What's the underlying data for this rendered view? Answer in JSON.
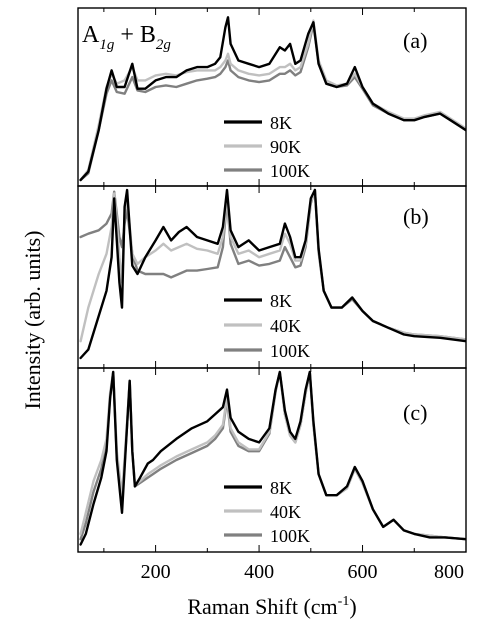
{
  "y_axis_label": "Intensity (arb. units)",
  "x_axis_label_main": "Raman Shift (cm",
  "x_axis_label_sup": "-1",
  "x_axis_label_end": ")",
  "symmetry_label": {
    "a": "A",
    "a_sub": "1g",
    "plus": " + ",
    "b": "B",
    "b_sub": "2g"
  },
  "chart_data": [
    {
      "type": "line",
      "panel_label": "(a)",
      "xlim": [
        50,
        800
      ],
      "x_ticks": [
        200,
        400,
        600,
        800
      ],
      "legend_position": "center",
      "series": [
        {
          "name": "8K",
          "color": "#000000",
          "width": 2.4,
          "x": [
            55,
            70,
            90,
            105,
            115,
            125,
            140,
            155,
            165,
            180,
            200,
            220,
            240,
            260,
            280,
            300,
            315,
            325,
            335,
            340,
            345,
            360,
            380,
            400,
            420,
            440,
            450,
            460,
            470,
            480,
            495,
            505,
            515,
            530,
            550,
            570,
            585,
            600,
            620,
            650,
            680,
            700,
            720,
            750,
            770,
            800
          ],
          "y": [
            0.0,
            0.05,
            0.3,
            0.55,
            0.66,
            0.56,
            0.56,
            0.7,
            0.55,
            0.55,
            0.6,
            0.62,
            0.62,
            0.66,
            0.68,
            0.68,
            0.7,
            0.74,
            0.92,
            0.98,
            0.82,
            0.72,
            0.7,
            0.68,
            0.7,
            0.8,
            0.78,
            0.82,
            0.7,
            0.72,
            0.88,
            0.95,
            0.7,
            0.58,
            0.56,
            0.58,
            0.68,
            0.56,
            0.46,
            0.4,
            0.36,
            0.36,
            0.38,
            0.4,
            0.36,
            0.3
          ]
        },
        {
          "name": "90K",
          "color": "#c0c0c0",
          "width": 2.4,
          "x": [
            55,
            70,
            90,
            105,
            115,
            125,
            140,
            155,
            165,
            180,
            200,
            220,
            240,
            260,
            280,
            300,
            315,
            325,
            335,
            340,
            345,
            360,
            380,
            400,
            420,
            440,
            450,
            460,
            470,
            480,
            495,
            505,
            515,
            530,
            550,
            570,
            585,
            600,
            620,
            650,
            680,
            700,
            720,
            750,
            770,
            800
          ],
          "y": [
            0.0,
            0.06,
            0.33,
            0.56,
            0.64,
            0.58,
            0.6,
            0.68,
            0.6,
            0.6,
            0.63,
            0.64,
            0.63,
            0.65,
            0.66,
            0.66,
            0.66,
            0.68,
            0.72,
            0.76,
            0.7,
            0.66,
            0.64,
            0.63,
            0.64,
            0.68,
            0.68,
            0.7,
            0.66,
            0.68,
            0.82,
            0.96,
            0.72,
            0.6,
            0.57,
            0.58,
            0.64,
            0.56,
            0.46,
            0.41,
            0.37,
            0.37,
            0.39,
            0.41,
            0.37,
            0.31
          ]
        },
        {
          "name": "100K",
          "color": "#808080",
          "width": 2.4,
          "x": [
            55,
            70,
            90,
            105,
            115,
            125,
            140,
            155,
            165,
            180,
            200,
            220,
            240,
            260,
            280,
            300,
            315,
            325,
            335,
            340,
            345,
            360,
            380,
            400,
            420,
            440,
            450,
            460,
            470,
            480,
            495,
            505,
            515,
            530,
            550,
            570,
            585,
            600,
            620,
            650,
            680,
            700,
            720,
            750,
            770,
            800
          ],
          "y": [
            0.0,
            0.04,
            0.3,
            0.52,
            0.6,
            0.53,
            0.52,
            0.62,
            0.54,
            0.53,
            0.56,
            0.57,
            0.56,
            0.58,
            0.6,
            0.61,
            0.62,
            0.64,
            0.68,
            0.72,
            0.66,
            0.62,
            0.6,
            0.59,
            0.6,
            0.64,
            0.64,
            0.66,
            0.63,
            0.65,
            0.8,
            0.94,
            0.7,
            0.58,
            0.56,
            0.57,
            0.62,
            0.55,
            0.45,
            0.4,
            0.36,
            0.36,
            0.38,
            0.4,
            0.36,
            0.3
          ]
        }
      ]
    },
    {
      "type": "line",
      "panel_label": "(b)",
      "xlim": [
        50,
        800
      ],
      "x_ticks": [
        200,
        400,
        600,
        800
      ],
      "legend_position": "bottom-center",
      "series": [
        {
          "name": "8K",
          "color": "#000000",
          "width": 2.4,
          "x": [
            55,
            70,
            90,
            105,
            115,
            120,
            125,
            130,
            135,
            140,
            145,
            155,
            165,
            180,
            200,
            215,
            230,
            245,
            260,
            280,
            300,
            320,
            330,
            338,
            345,
            360,
            380,
            400,
            420,
            440,
            450,
            460,
            470,
            480,
            490,
            500,
            508,
            515,
            525,
            540,
            560,
            580,
            600,
            620,
            650,
            680,
            700,
            750,
            800
          ],
          "y": [
            0.0,
            0.05,
            0.25,
            0.4,
            0.6,
            0.95,
            0.7,
            0.45,
            0.3,
            0.9,
            1.0,
            0.55,
            0.5,
            0.6,
            0.7,
            0.78,
            0.7,
            0.75,
            0.78,
            0.72,
            0.7,
            0.68,
            0.78,
            1.0,
            0.76,
            0.66,
            0.7,
            0.64,
            0.66,
            0.68,
            0.8,
            0.72,
            0.6,
            0.6,
            0.7,
            0.95,
            1.0,
            0.65,
            0.4,
            0.3,
            0.3,
            0.36,
            0.28,
            0.22,
            0.18,
            0.14,
            0.13,
            0.12,
            0.1
          ]
        },
        {
          "name": "40K",
          "color": "#c0c0c0",
          "width": 2.4,
          "x": [
            55,
            70,
            90,
            105,
            115,
            120,
            125,
            130,
            135,
            140,
            145,
            155,
            165,
            180,
            200,
            215,
            230,
            245,
            260,
            280,
            300,
            320,
            330,
            338,
            345,
            360,
            380,
            400,
            420,
            440,
            450,
            460,
            470,
            480,
            490,
            500,
            508,
            515,
            525,
            540,
            560,
            580,
            600,
            620,
            650,
            680,
            700,
            750,
            800
          ],
          "y": [
            0.1,
            0.3,
            0.5,
            0.62,
            0.78,
            0.98,
            0.82,
            0.6,
            0.45,
            0.85,
            0.95,
            0.62,
            0.56,
            0.6,
            0.64,
            0.68,
            0.64,
            0.66,
            0.68,
            0.65,
            0.64,
            0.62,
            0.72,
            0.96,
            0.72,
            0.62,
            0.64,
            0.6,
            0.62,
            0.64,
            0.74,
            0.68,
            0.58,
            0.58,
            0.68,
            0.93,
            1.0,
            0.64,
            0.4,
            0.3,
            0.3,
            0.36,
            0.28,
            0.22,
            0.18,
            0.15,
            0.14,
            0.13,
            0.11
          ]
        },
        {
          "name": "100K",
          "color": "#808080",
          "width": 2.4,
          "x": [
            55,
            70,
            90,
            105,
            115,
            120,
            125,
            130,
            135,
            140,
            145,
            155,
            165,
            180,
            200,
            215,
            230,
            245,
            260,
            280,
            300,
            320,
            330,
            338,
            345,
            360,
            380,
            400,
            420,
            440,
            450,
            460,
            470,
            480,
            490,
            500,
            508,
            515,
            525,
            540,
            560,
            580,
            600,
            620,
            650,
            680,
            700,
            750,
            800
          ],
          "y": [
            0.72,
            0.74,
            0.76,
            0.8,
            0.86,
            0.99,
            0.86,
            0.72,
            0.66,
            0.8,
            0.88,
            0.62,
            0.52,
            0.5,
            0.5,
            0.5,
            0.48,
            0.5,
            0.52,
            0.52,
            0.53,
            0.54,
            0.66,
            0.94,
            0.68,
            0.56,
            0.58,
            0.55,
            0.56,
            0.58,
            0.66,
            0.6,
            0.54,
            0.55,
            0.66,
            0.92,
            1.0,
            0.63,
            0.4,
            0.3,
            0.3,
            0.35,
            0.28,
            0.22,
            0.18,
            0.15,
            0.14,
            0.13,
            0.11
          ]
        }
      ]
    },
    {
      "type": "line",
      "panel_label": "(c)",
      "xlim": [
        50,
        800
      ],
      "x_ticks": [
        200,
        400,
        600,
        800
      ],
      "legend_position": "bottom-center",
      "series": [
        {
          "name": "8K",
          "color": "#000000",
          "width": 2.4,
          "x": [
            55,
            65,
            80,
            95,
            105,
            112,
            118,
            125,
            135,
            145,
            150,
            155,
            160,
            170,
            185,
            195,
            210,
            240,
            270,
            300,
            315,
            330,
            338,
            345,
            360,
            380,
            400,
            420,
            432,
            440,
            450,
            460,
            470,
            480,
            490,
            498,
            505,
            515,
            530,
            550,
            570,
            585,
            600,
            620,
            640,
            660,
            680,
            700,
            730,
            760,
            800
          ],
          "y": [
            0.02,
            0.08,
            0.25,
            0.4,
            0.55,
            0.85,
            1.0,
            0.5,
            0.2,
            0.7,
            0.95,
            0.55,
            0.35,
            0.4,
            0.48,
            0.5,
            0.55,
            0.62,
            0.68,
            0.72,
            0.76,
            0.8,
            0.9,
            0.74,
            0.66,
            0.62,
            0.6,
            0.68,
            0.9,
            1.0,
            0.78,
            0.66,
            0.62,
            0.72,
            0.9,
            1.0,
            0.72,
            0.42,
            0.3,
            0.3,
            0.35,
            0.46,
            0.38,
            0.22,
            0.12,
            0.16,
            0.1,
            0.08,
            0.06,
            0.06,
            0.05
          ]
        },
        {
          "name": "40K",
          "color": "#c0c0c0",
          "width": 2.4,
          "x": [
            55,
            65,
            80,
            95,
            105,
            112,
            118,
            125,
            135,
            145,
            150,
            155,
            160,
            170,
            185,
            195,
            210,
            240,
            270,
            300,
            315,
            330,
            338,
            345,
            360,
            380,
            400,
            420,
            432,
            440,
            450,
            460,
            470,
            480,
            490,
            498,
            505,
            515,
            530,
            550,
            570,
            585,
            600,
            620,
            640,
            660,
            680,
            700,
            730,
            760,
            800
          ],
          "y": [
            0.08,
            0.2,
            0.38,
            0.5,
            0.62,
            0.88,
            1.0,
            0.55,
            0.3,
            0.72,
            0.95,
            0.55,
            0.36,
            0.38,
            0.42,
            0.44,
            0.47,
            0.52,
            0.56,
            0.6,
            0.64,
            0.7,
            0.86,
            0.68,
            0.6,
            0.56,
            0.56,
            0.66,
            0.9,
            1.0,
            0.76,
            0.64,
            0.6,
            0.7,
            0.88,
            1.0,
            0.7,
            0.42,
            0.3,
            0.3,
            0.34,
            0.45,
            0.37,
            0.22,
            0.12,
            0.16,
            0.1,
            0.08,
            0.07,
            0.06,
            0.05
          ]
        },
        {
          "name": "100K",
          "color": "#808080",
          "width": 2.4,
          "x": [
            55,
            65,
            80,
            95,
            105,
            112,
            118,
            125,
            135,
            145,
            150,
            155,
            160,
            170,
            185,
            195,
            210,
            240,
            270,
            300,
            315,
            330,
            338,
            345,
            360,
            380,
            400,
            420,
            432,
            440,
            450,
            460,
            470,
            480,
            490,
            498,
            505,
            515,
            530,
            550,
            570,
            585,
            600,
            620,
            640,
            660,
            680,
            700,
            730,
            760,
            800
          ],
          "y": [
            0.05,
            0.14,
            0.32,
            0.45,
            0.58,
            0.86,
            1.0,
            0.52,
            0.25,
            0.7,
            0.95,
            0.55,
            0.35,
            0.37,
            0.4,
            0.42,
            0.45,
            0.5,
            0.54,
            0.58,
            0.62,
            0.68,
            0.84,
            0.66,
            0.58,
            0.55,
            0.55,
            0.65,
            0.89,
            1.0,
            0.76,
            0.64,
            0.6,
            0.7,
            0.88,
            1.0,
            0.7,
            0.42,
            0.3,
            0.3,
            0.34,
            0.45,
            0.37,
            0.22,
            0.12,
            0.16,
            0.1,
            0.08,
            0.07,
            0.06,
            0.05
          ]
        }
      ]
    }
  ]
}
